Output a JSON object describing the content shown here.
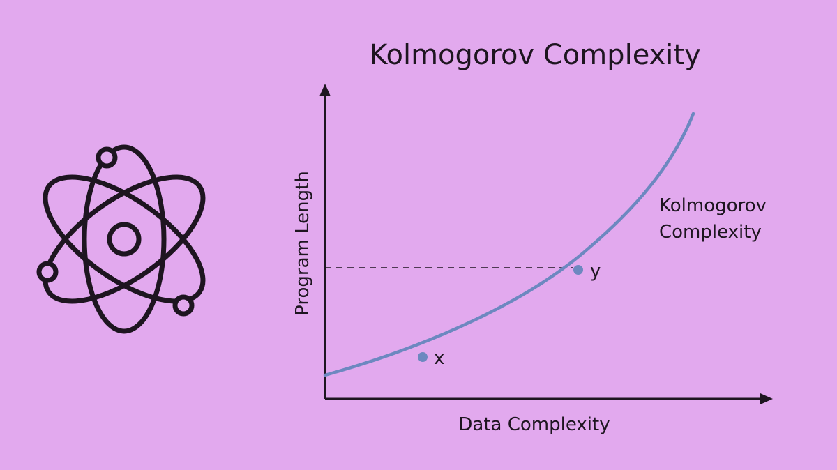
{
  "title": "Kolmogorov Complexity",
  "xlabel": "Data Complexity",
  "ylabel": "Program Length",
  "curve_label_line1": "Kolmogorov",
  "curve_label_line2": "Complexity",
  "point_x_label": "x",
  "point_y_label": "y",
  "icon": "atom-icon",
  "colors": {
    "background": "#e2a9ee",
    "ink": "#1e1520",
    "curve": "#6d88c0",
    "points": "#6d88c0"
  }
}
